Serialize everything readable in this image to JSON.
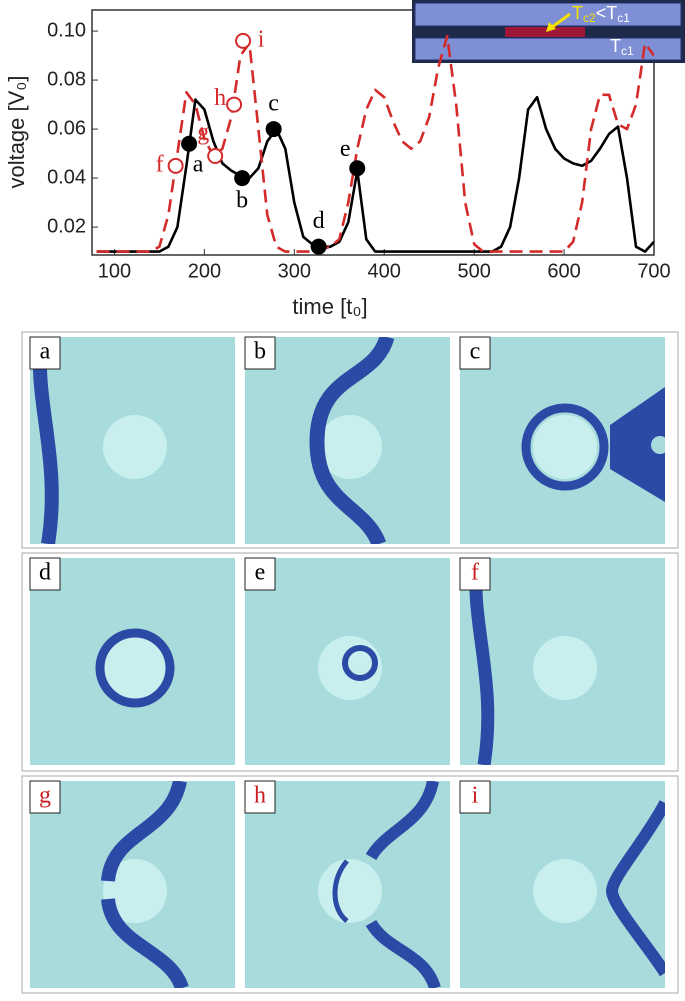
{
  "chart_data": {
    "type": "line",
    "xlabel": "time [t₀]",
    "ylabel": "voltage [V₀]",
    "xlim": [
      75,
      700
    ],
    "ylim": [
      0.0086,
      0.1086
    ],
    "xticks": [
      100,
      200,
      300,
      400,
      500,
      600,
      700
    ],
    "yticks": [
      0.02,
      0.04,
      0.06,
      0.08,
      {
        "value": 0.1,
        "label": "0.10"
      }
    ],
    "x": [
      80,
      90,
      100,
      110,
      120,
      130,
      140,
      150,
      160,
      170,
      180,
      190,
      200,
      210,
      220,
      230,
      240,
      250,
      260,
      270,
      280,
      290,
      300,
      310,
      320,
      330,
      340,
      350,
      360,
      370,
      380,
      390,
      400,
      410,
      420,
      430,
      440,
      450,
      460,
      470,
      480,
      490,
      500,
      510,
      520,
      530,
      540,
      550,
      560,
      570,
      580,
      590,
      600,
      610,
      620,
      630,
      640,
      650,
      660,
      670,
      680,
      690,
      700
    ],
    "series": [
      {
        "color": "#000000",
        "dashed": false,
        "values": [
          0.01,
          0.01,
          0.01,
          0.01,
          0.01,
          0.01,
          0.01,
          0.01,
          0.012,
          0.02,
          0.045,
          0.072,
          0.068,
          0.055,
          0.046,
          0.043,
          0.041,
          0.04,
          0.044,
          0.055,
          0.06,
          0.052,
          0.03,
          0.016,
          0.013,
          0.012,
          0.012,
          0.014,
          0.022,
          0.043,
          0.015,
          0.01,
          0.01,
          0.01,
          0.01,
          0.01,
          0.01,
          0.01,
          0.01,
          0.01,
          0.01,
          0.01,
          0.01,
          0.01,
          0.01,
          0.012,
          0.02,
          0.04,
          0.068,
          0.073,
          0.06,
          0.052,
          0.048,
          0.046,
          0.045,
          0.047,
          0.052,
          0.058,
          0.061,
          0.04,
          0.012,
          0.01,
          0.014
        ]
      },
      {
        "color": "#d42a2a",
        "dashed": true,
        "values": [
          0.01,
          0.01,
          0.01,
          0.01,
          0.01,
          0.01,
          0.01,
          0.012,
          0.025,
          0.05,
          0.075,
          0.07,
          0.056,
          0.049,
          0.052,
          0.065,
          0.09,
          0.095,
          0.06,
          0.025,
          0.012,
          0.01,
          0.01,
          0.01,
          0.01,
          0.011,
          0.012,
          0.015,
          0.03,
          0.052,
          0.068,
          0.076,
          0.073,
          0.063,
          0.055,
          0.052,
          0.055,
          0.065,
          0.085,
          0.098,
          0.07,
          0.03,
          0.013,
          0.01,
          0.01,
          0.01,
          0.01,
          0.01,
          0.01,
          0.01,
          0.01,
          0.01,
          0.01,
          0.014,
          0.03,
          0.06,
          0.074,
          0.074,
          0.062,
          0.06,
          0.07,
          0.095,
          0.09
        ]
      }
    ],
    "annotations": [
      {
        "label": "a",
        "x": 183,
        "y": 0.054,
        "color": "#000000",
        "filled": true
      },
      {
        "label": "b",
        "x": 242,
        "y": 0.04,
        "color": "#000000",
        "filled": true
      },
      {
        "label": "c",
        "x": 277,
        "y": 0.06,
        "color": "#000000",
        "filled": true
      },
      {
        "label": "d",
        "x": 327,
        "y": 0.012,
        "color": "#000000",
        "filled": true
      },
      {
        "label": "e",
        "x": 370,
        "y": 0.044,
        "color": "#000000",
        "filled": true
      },
      {
        "label": "f",
        "x": 168,
        "y": 0.045,
        "color": "#d42a2a",
        "filled": false
      },
      {
        "label": "g",
        "x": 212,
        "y": 0.049,
        "color": "#d42a2a",
        "filled": false
      },
      {
        "label": "h",
        "x": 233,
        "y": 0.07,
        "color": "#d42a2a",
        "filled": false
      },
      {
        "label": "i",
        "x": 243,
        "y": 0.096,
        "color": "#d42a2a",
        "filled": false
      }
    ]
  },
  "inset": {
    "top_label": [
      "T",
      "c2",
      "<T",
      "c1"
    ],
    "bottom_label": [
      "T",
      "c1"
    ]
  },
  "panels": [
    {
      "label": "a",
      "label_color": "#000000"
    },
    {
      "label": "b",
      "label_color": "#000000"
    },
    {
      "label": "c",
      "label_color": "#000000"
    },
    {
      "label": "d",
      "label_color": "#000000"
    },
    {
      "label": "e",
      "label_color": "#000000"
    },
    {
      "label": "f",
      "label_color": "#c82020"
    },
    {
      "label": "g",
      "label_color": "#c82020"
    },
    {
      "label": "h",
      "label_color": "#c82020"
    },
    {
      "label": "i",
      "label_color": "#c82020"
    }
  ]
}
